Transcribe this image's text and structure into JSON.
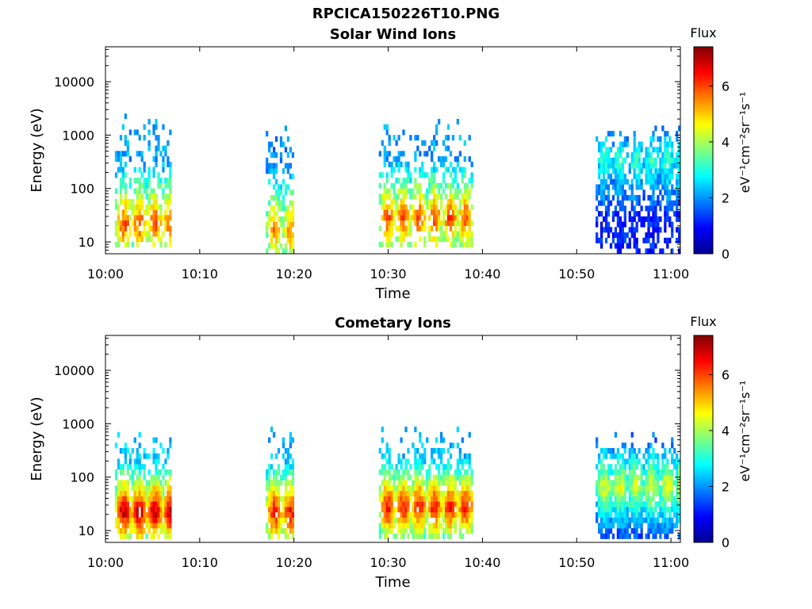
{
  "figure": {
    "title": "RPCICA150226T10.PNG"
  },
  "chart_data": [
    {
      "type": "heatmap",
      "title": "Solar Wind Ions",
      "xlabel": "Time",
      "ylabel": "Energy (eV)",
      "x_ticks": [
        "10:00",
        "10:10",
        "10:20",
        "10:30",
        "10:40",
        "10:50",
        "11:00"
      ],
      "xlim": [
        "10:00",
        "11:01"
      ],
      "y_ticks": [
        "10",
        "100",
        "1000",
        "10000"
      ],
      "y_scale": "log",
      "ylim": [
        6,
        45000
      ],
      "colorbar": {
        "label": "Flux",
        "unit": "eV⁻¹cm⁻²sr⁻¹s⁻¹",
        "ticks": [
          "0",
          "2",
          "4",
          "6"
        ],
        "range": [
          0,
          7.4
        ],
        "colormap": "jet"
      },
      "bursts": [
        {
          "t_start": "10:01",
          "t_end": "10:07",
          "e_min": 8,
          "e_max": 2500,
          "peak_flux": 6.0,
          "peak_energy": 20
        },
        {
          "t_start": "10:17",
          "t_end": "10:20",
          "e_min": 6,
          "e_max": 2000,
          "peak_flux": 5.5,
          "peak_energy": 15
        },
        {
          "t_start": "10:29",
          "t_end": "10:39",
          "e_min": 8,
          "e_max": 1800,
          "peak_flux": 6.0,
          "peak_energy": 25
        },
        {
          "t_start": "10:52",
          "t_end": "11:01",
          "e_min": 6,
          "e_max": 1500,
          "peak_flux": 3.2,
          "peak_energy": 300
        }
      ]
    },
    {
      "type": "heatmap",
      "title": "Cometary Ions",
      "xlabel": "Time",
      "ylabel": "Energy (eV)",
      "x_ticks": [
        "10:00",
        "10:10",
        "10:20",
        "10:30",
        "10:40",
        "10:50",
        "11:00"
      ],
      "xlim": [
        "10:00",
        "11:01"
      ],
      "y_ticks": [
        "10",
        "100",
        "1000",
        "10000"
      ],
      "y_scale": "log",
      "ylim": [
        6,
        45000
      ],
      "colorbar": {
        "label": "Flux",
        "unit": "eV⁻¹cm⁻²sr⁻¹s⁻¹",
        "ticks": [
          "0",
          "2",
          "4",
          "6"
        ],
        "range": [
          0,
          7.4
        ],
        "colormap": "jet"
      },
      "bursts": [
        {
          "t_start": "10:01",
          "t_end": "10:07",
          "e_min": 7,
          "e_max": 700,
          "peak_flux": 7.0,
          "peak_energy": 20
        },
        {
          "t_start": "10:17",
          "t_end": "10:20",
          "e_min": 7,
          "e_max": 900,
          "peak_flux": 6.5,
          "peak_energy": 20
        },
        {
          "t_start": "10:29",
          "t_end": "10:39",
          "e_min": 7,
          "e_max": 800,
          "peak_flux": 6.5,
          "peak_energy": 25
        },
        {
          "t_start": "10:52",
          "t_end": "11:01",
          "e_min": 7,
          "e_max": 650,
          "peak_flux": 4.5,
          "peak_energy": 60
        }
      ]
    }
  ]
}
